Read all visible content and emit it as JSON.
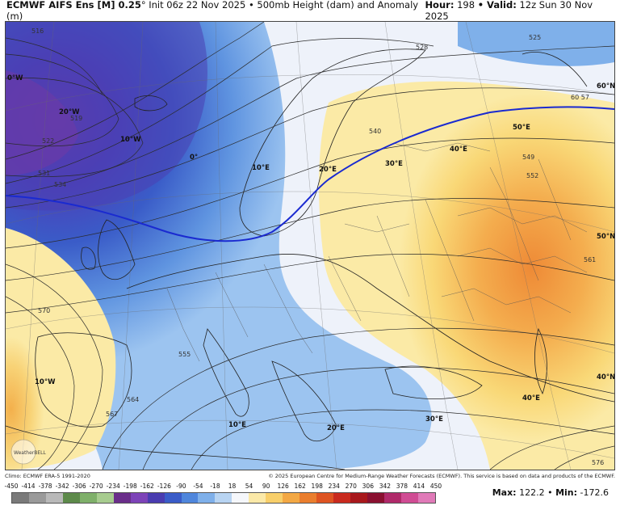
{
  "header": {
    "model": "ECMWF AIFS Ens [M] 0.25",
    "deg": "°",
    "init": "Init 06z 22 Nov 2025",
    "product": "• 500mb Height (dam) and Anomaly (m)",
    "hour_label": "Hour:",
    "hour_value": "198",
    "valid_label": "• Valid:",
    "valid_value": "12z Sun 30 Nov 2025"
  },
  "map": {
    "contour_labels": [
      "516",
      "519",
      "522",
      "525",
      "528",
      "531",
      "534",
      "540",
      "549",
      "552",
      "555",
      "561",
      "564",
      "567",
      "570",
      "576",
      "60 57"
    ],
    "grid_labels": [
      "0°W",
      "20°W",
      "10°W",
      "0°",
      "10°E",
      "20°E",
      "30°E",
      "40°E",
      "50°E",
      "60°N",
      "50°N",
      "40°N",
      "10°W",
      "10°E",
      "20°E",
      "30°E",
      "40°E"
    ],
    "logo": "WeatherBELL"
  },
  "credits": {
    "left": "Climo: ECMWF ERA-5 1991-2020",
    "right": "© 2025 European Centre for Medium-Range Weather Forecasts (ECMWF). This service is based on data and products of the ECMWF."
  },
  "colorbar": {
    "ticks": [
      "-450",
      "-414",
      "-378",
      "-342",
      "-306",
      "-270",
      "-234",
      "-198",
      "-162",
      "-126",
      "-90",
      "-54",
      "-18",
      "18",
      "54",
      "90",
      "126",
      "162",
      "198",
      "234",
      "270",
      "306",
      "342",
      "378",
      "414",
      "450"
    ],
    "colors": [
      "#7a7a7a",
      "#9a9a9a",
      "#b9b9b9",
      "#5d8a4a",
      "#7fb06a",
      "#a7cc8f",
      "#6a2e8a",
      "#7d43b8",
      "#4a3cb0",
      "#3a5cc8",
      "#4f86dc",
      "#7fb0ea",
      "#b8d4f2",
      "#f5f7fb",
      "#fbe9a8",
      "#f8cf6a",
      "#f3a844",
      "#ea7e2e",
      "#de5422",
      "#c92a1e",
      "#a8181c",
      "#8a1030",
      "#b02a6a",
      "#d04c94",
      "#e07ab8"
    ]
  },
  "maxmin": {
    "max_label": "Max:",
    "max_value": "122.2",
    "sep": "•",
    "min_label": "Min:",
    "min_value": "-172.6"
  }
}
